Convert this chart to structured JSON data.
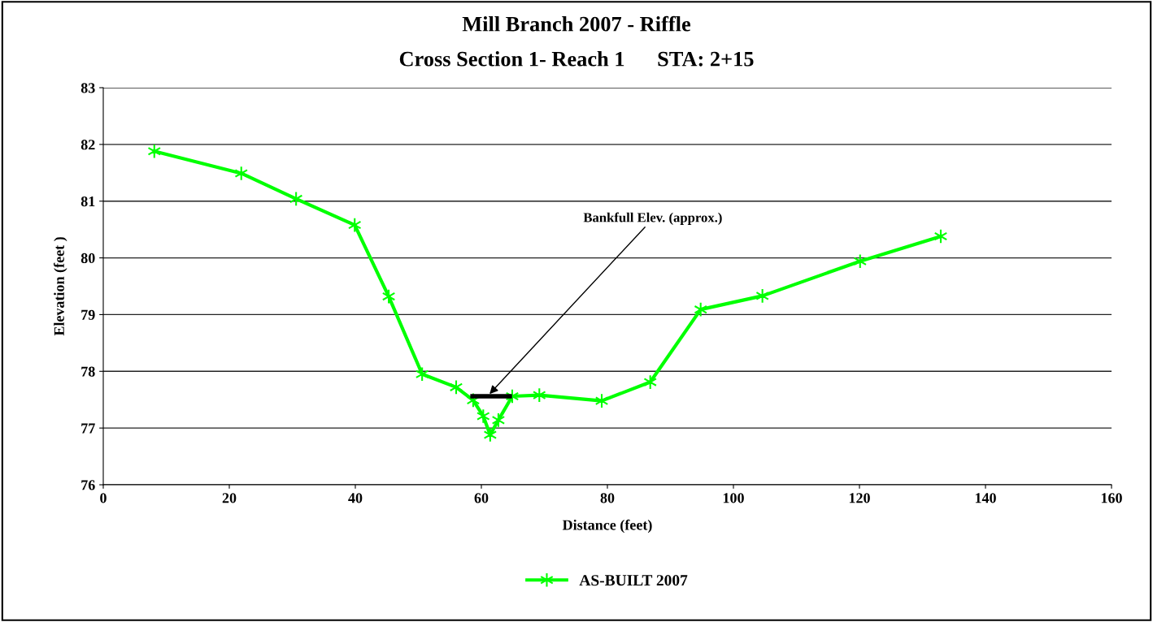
{
  "chart_data": {
    "type": "line",
    "title": "Mill Branch 2007 - Riffle",
    "subtitle": "Cross Section 1- Reach 1      STA: 2+15",
    "xlabel": "Distance (feet)",
    "ylabel": "Elevation (feet )",
    "series": [
      {
        "name": "AS-BUILT 2007",
        "color": "#00ff00",
        "marker": "cross",
        "x": [
          8.1,
          21.9,
          30.6,
          39.9,
          45.3,
          50.6,
          56.0,
          58.7,
          60.3,
          61.4,
          62.7,
          64.9,
          69.2,
          79.1,
          86.8,
          94.8,
          104.6,
          120.1,
          132.9
        ],
        "values": [
          81.88,
          81.49,
          81.04,
          80.58,
          79.32,
          77.95,
          77.72,
          77.49,
          77.21,
          76.88,
          77.14,
          77.56,
          77.58,
          77.48,
          77.81,
          79.09,
          79.33,
          79.94,
          80.38
        ]
      },
      {
        "color": "#000000",
        "marker": "none",
        "x": [
          58.6,
          64.5
        ],
        "values": [
          77.56,
          77.56
        ]
      }
    ],
    "annotations": [
      {
        "text": "Bankfull Elev. (approx.)",
        "x": 61.3,
        "y": 77.6
      }
    ],
    "xlim": [
      0,
      160
    ],
    "xticks": [
      0,
      20,
      40,
      60,
      80,
      100,
      120,
      140,
      160
    ],
    "ylim": [
      76,
      83
    ],
    "yticks": [
      76,
      77,
      78,
      79,
      80,
      81,
      82,
      83
    ],
    "grid": "y",
    "legend": "bottom",
    "line_style": "solid"
  }
}
